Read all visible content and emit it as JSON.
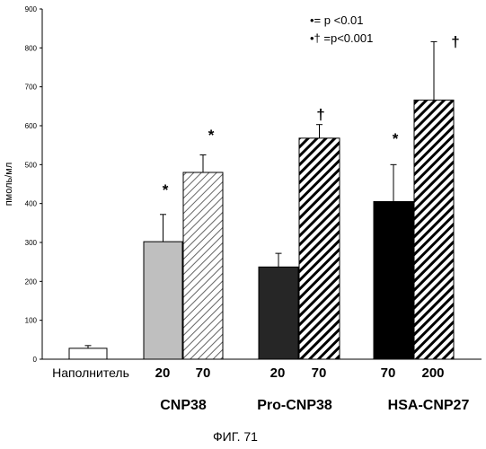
{
  "chart_data": {
    "type": "bar",
    "ylabel": "пмоль/мл",
    "ylim": [
      0,
      900
    ],
    "yticks": [
      0,
      100,
      200,
      300,
      400,
      500,
      600,
      700,
      800,
      900
    ],
    "grid": false,
    "legend_position": "top-right",
    "legend": [
      "•= p <0.01",
      "•† =p<0.001"
    ],
    "categories": [
      "Наполнитель",
      "20",
      "70",
      "20",
      "70",
      "70",
      "200"
    ],
    "groups": [
      {
        "label": "",
        "categories": [
          "Наполнитель"
        ]
      },
      {
        "label": "CNP38",
        "categories": [
          "20",
          "70"
        ]
      },
      {
        "label": "Pro-CNP38",
        "categories": [
          "20",
          "70"
        ]
      },
      {
        "label": "HSA-CNP27",
        "categories": [
          "70",
          "200"
        ]
      }
    ],
    "series": [
      {
        "values": [
          28,
          302,
          480,
          237,
          568,
          405,
          666
        ],
        "errors": [
          7,
          70,
          45,
          35,
          35,
          95,
          150
        ],
        "significance": [
          "",
          "*",
          "*",
          "",
          "†",
          "*",
          "†"
        ],
        "fills": [
          "white",
          "light-gray",
          "light-hatch",
          "dark-gray",
          "hatch",
          "black",
          "hatch"
        ]
      }
    ]
  },
  "figure": {
    "caption": "ФИГ. 71"
  }
}
